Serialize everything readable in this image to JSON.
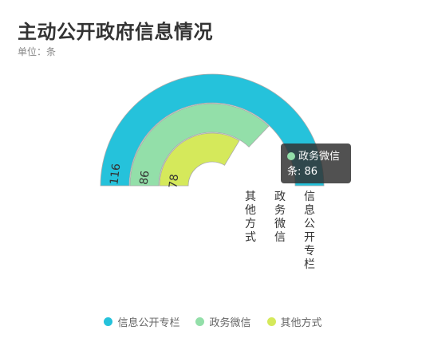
{
  "header": {
    "title": "主动公开政府信息情况",
    "subtitle": "单位：条"
  },
  "chart_data": {
    "type": "polar-bar",
    "series": [
      {
        "name": "信息公开专栏",
        "value": 116,
        "color": "#25C2DB"
      },
      {
        "name": "政务微信",
        "value": 86,
        "color": "#93DFA9"
      },
      {
        "name": "其他方式",
        "value": 78,
        "color": "#D5E95B"
      }
    ],
    "angle_max": 116,
    "legend_position": "bottom"
  },
  "tooltip": {
    "series_name": "政务微信",
    "label": "条: 86",
    "color": "#93DFA9"
  }
}
